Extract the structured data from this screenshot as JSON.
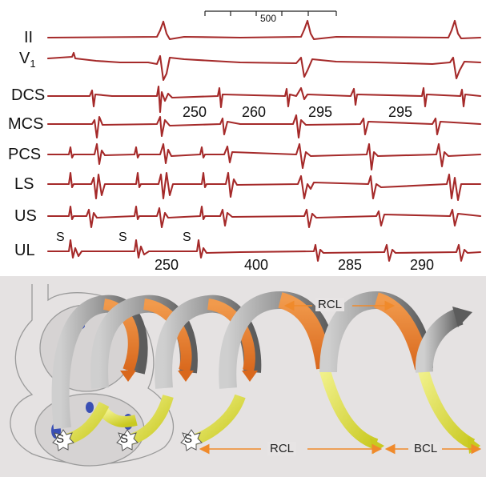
{
  "scale_bar": {
    "label": "500"
  },
  "leads": {
    "II": "II",
    "V1_main": "V",
    "V1_sub": "1",
    "DCS": "DCS",
    "MCS": "MCS",
    "PCS": "PCS",
    "LS": "LS",
    "US": "US",
    "UL": "UL"
  },
  "dcs_intervals": [
    "250",
    "260",
    "295",
    "295"
  ],
  "ul_intervals": [
    "250",
    "400",
    "285",
    "290"
  ],
  "stim_marker": "S",
  "diagram": {
    "rcl_top": "RCL",
    "rcl_bottom": "RCL",
    "bcl": "BCL",
    "stim_labels": [
      "S",
      "S",
      "S"
    ]
  },
  "colors": {
    "trace": "#a52a2a",
    "panel": "#e5e2e2",
    "grey_arrow": "#8f8f8f",
    "orange_arrow": "#e3782a",
    "yellow_arrow": "#d9d92c",
    "blue_site": "#3a4fb4",
    "label_arrow": "#f08a2b"
  }
}
